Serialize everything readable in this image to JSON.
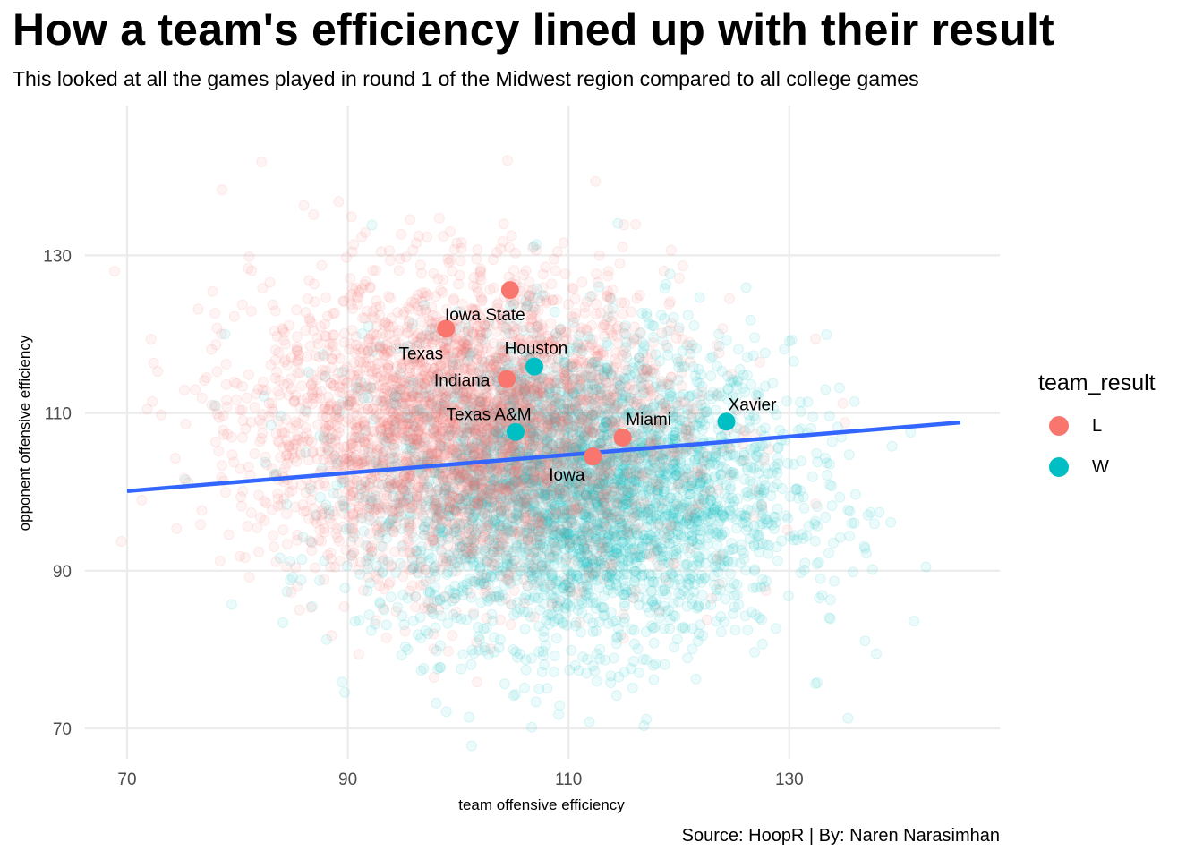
{
  "title": "How a team's efficiency lined up with their result",
  "subtitle": "This looked at all the games played in round 1 of the Midwest region compared to all college games",
  "caption": "Source: HoopR | By: Naren Narasimhan",
  "legend": {
    "title": "team_result",
    "items": [
      {
        "label": "L",
        "color": "#F8766D"
      },
      {
        "label": "W",
        "color": "#00BFC4"
      }
    ]
  },
  "chart_data": {
    "type": "scatter",
    "title": "How a team's efficiency lined up with their result",
    "subtitle": "This looked at all the games played in round 1 of the Midwest region compared to all college games",
    "xlabel": "team offensive efficiency",
    "ylabel": "opponent offensive efficiency",
    "x_ticks": [
      70,
      90,
      110,
      130
    ],
    "y_ticks": [
      70,
      90,
      110,
      130
    ],
    "xlim": [
      66,
      145
    ],
    "ylim": [
      67,
      148
    ],
    "grid": true,
    "legend_position": "right",
    "background_points": {
      "description": "all college games, semi-transparent",
      "count_approx": 30000,
      "L": {
        "x_mean": 101,
        "x_sd": 9.5,
        "y_mean": 108,
        "y_sd": 9.5
      },
      "W": {
        "x_mean": 111,
        "x_sd": 9.5,
        "y_mean": 100,
        "y_sd": 9.5
      }
    },
    "highlighted_points": [
      {
        "label": "Iowa State",
        "x": 104.7,
        "y": 125.6,
        "result": "L"
      },
      {
        "label": "Texas",
        "x": 98.9,
        "y": 120.7,
        "result": "L"
      },
      {
        "label": "Houston",
        "x": 106.9,
        "y": 115.9,
        "result": "W"
      },
      {
        "label": "Indiana",
        "x": 104.4,
        "y": 114.3,
        "result": "L"
      },
      {
        "label": "Xavier",
        "x": 124.3,
        "y": 108.9,
        "result": "W"
      },
      {
        "label": "Texas A&M",
        "x": 105.2,
        "y": 107.6,
        "result": "W"
      },
      {
        "label": "Miami",
        "x": 114.9,
        "y": 106.9,
        "result": "L"
      },
      {
        "label": "Iowa",
        "x": 112.2,
        "y": 104.5,
        "result": "L"
      }
    ],
    "trend_line": {
      "x": [
        70,
        145.5
      ],
      "y": [
        100.1,
        108.8
      ],
      "color": "#3366FF"
    }
  }
}
